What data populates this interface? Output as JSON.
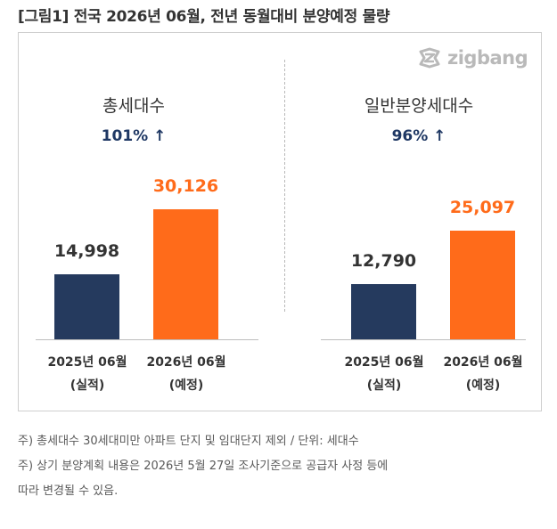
{
  "title": "[그림1] 전국 2026년 06월, 전년 동월대비 분양예정 물량",
  "logo": {
    "text": "zigbang",
    "icon": "zigbang-logo-icon"
  },
  "colors": {
    "navy": "#253a5e",
    "orange": "#ff6b1a",
    "pct": "#1f3864"
  },
  "chart_data": [
    {
      "type": "bar",
      "title": "총세대수",
      "change_label": "101% ↑",
      "categories": [
        "2025년 06월",
        "2026년 06월"
      ],
      "category_sublabels": [
        "(실적)",
        "(예정)"
      ],
      "values": [
        14998,
        30126
      ],
      "value_labels": [
        "14,998",
        "30,126"
      ],
      "ylim": [
        0,
        32000
      ]
    },
    {
      "type": "bar",
      "title": "일반분양세대수",
      "change_label": "96% ↑",
      "categories": [
        "2025년 06월",
        "2026년 06월"
      ],
      "category_sublabels": [
        "(실적)",
        "(예정)"
      ],
      "values": [
        12790,
        25097
      ],
      "value_labels": [
        "12,790",
        "25,097"
      ],
      "ylim": [
        0,
        32000
      ]
    }
  ],
  "notes": [
    "주) 총세대수 30세대미만 아파트  단지 및 임대단지 제외 / 단위: 세대수",
    "주) 상기 분양계획 내용은 2026년 5월 27일 조사기준으로 공급자 사정 등에",
    "따라 변경될 수 있음."
  ]
}
